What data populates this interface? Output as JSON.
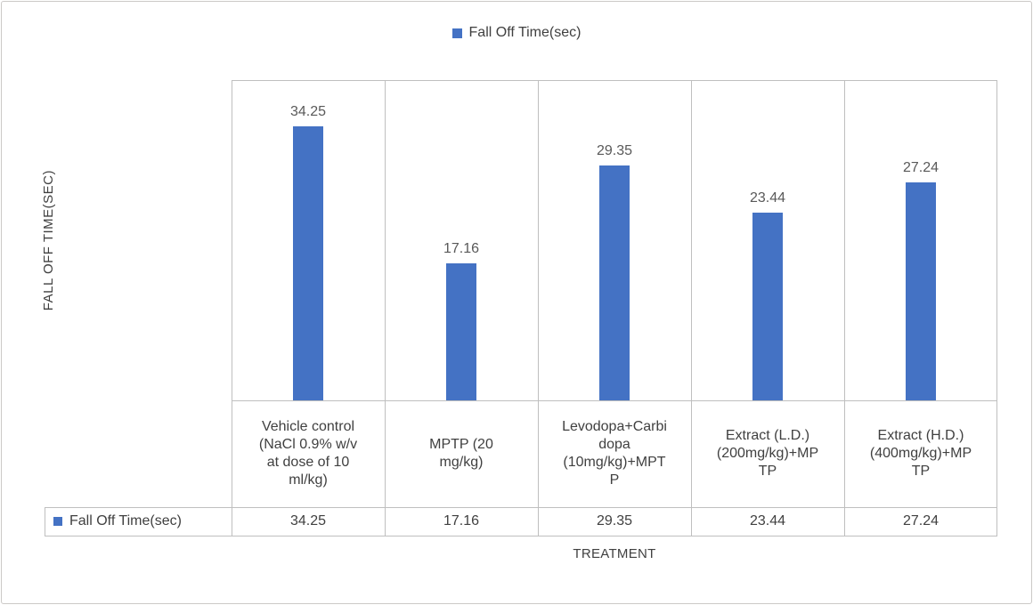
{
  "legend": {
    "label": "Fall Off Time(sec)"
  },
  "chart_data": {
    "type": "bar",
    "title": "",
    "legend": [
      "Fall Off Time(sec)"
    ],
    "legend_position": "top",
    "categories": [
      "Vehicle control (NaCl 0.9% w/v at dose of 10 ml/kg)",
      "MPTP (20 mg/kg)",
      "Levodopa+Carbidopa (10mg/kg)+MPTP",
      "Extract (L.D.) (200mg/kg)+MPTP",
      "Extract (H.D.) (400mg/kg)+MPTP"
    ],
    "series": [
      {
        "name": "Fall Off Time(sec)",
        "values": [
          34.25,
          17.16,
          29.35,
          23.44,
          27.24
        ]
      }
    ],
    "xlabel": "TREATMENT",
    "ylabel": "FALL OFF TIME(SEC)",
    "ylim": [
      0,
      40
    ],
    "bar_color": "#4472C4",
    "grid": false,
    "data_labels": true,
    "data_table": true
  },
  "table": {
    "row_header": "Fall Off Time(sec)",
    "category_cells": [
      "Vehicle control\n(NaCl 0.9% w/v\nat dose of 10\nml/kg)",
      "MPTP (20\nmg/kg)",
      "Levodopa+Carbi\ndopa\n(10mg/kg)+MPT\nP",
      "Extract (L.D.)\n(200mg/kg)+MP\nTP",
      "Extract (H.D.)\n(400mg/kg)+MP\nTP"
    ]
  },
  "colors": {
    "bar": "#4472C4",
    "line": "#BFBFBF",
    "data_label_text": "#595959",
    "text": "#404040"
  }
}
